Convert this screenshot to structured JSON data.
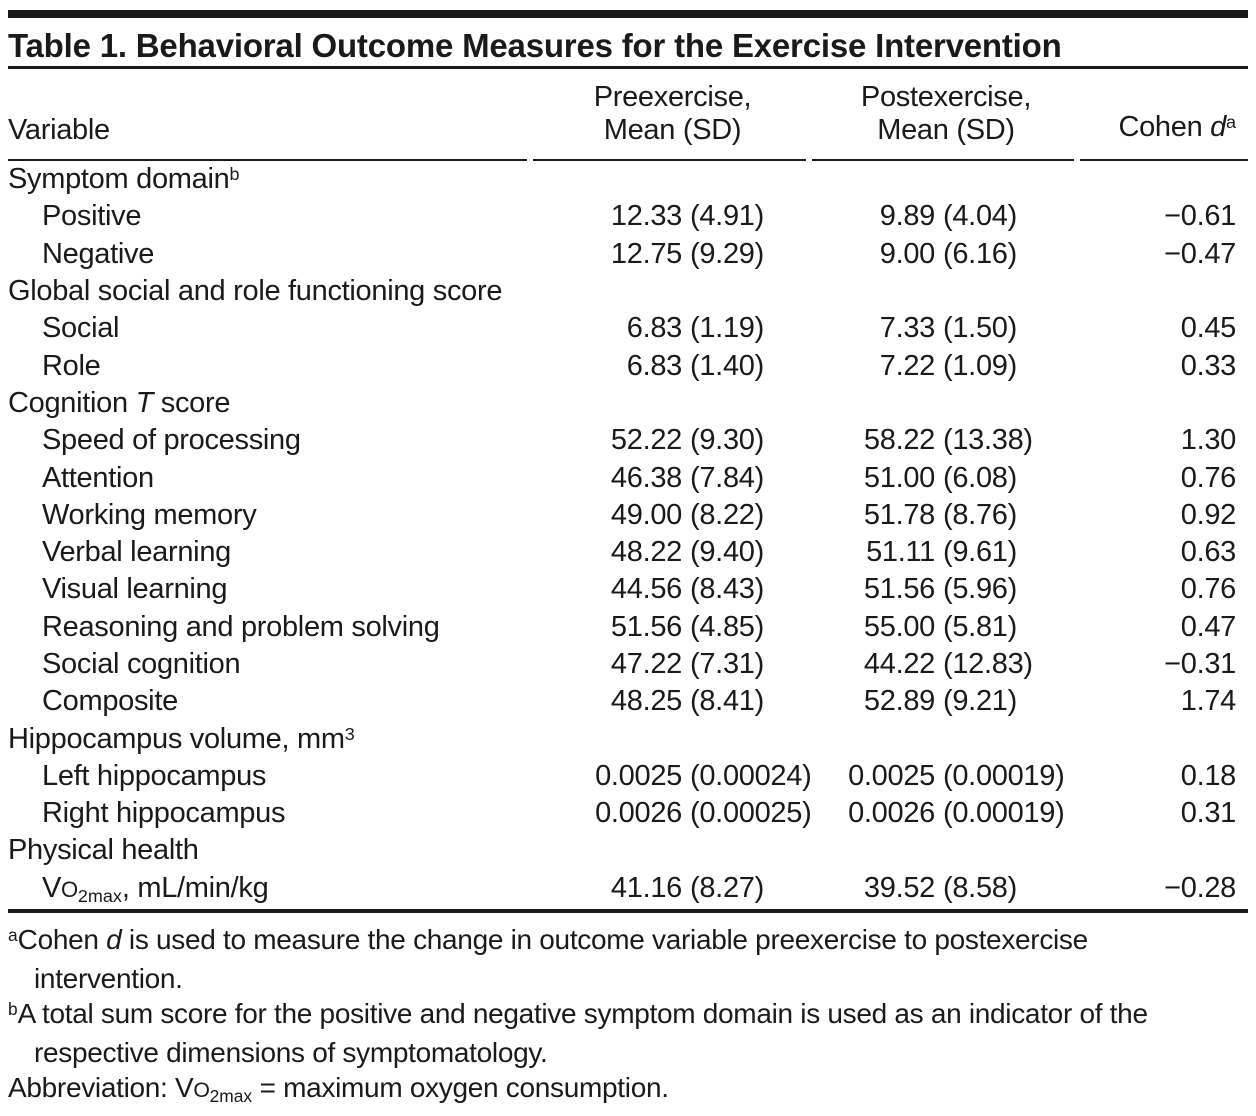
{
  "title": "Table 1. Behavioral Outcome Measures for the Exercise Intervention",
  "header": {
    "variable": "Variable",
    "pre_line1": "Preexercise,",
    "pre_line2": "Mean (SD)",
    "post_line1": "Postexercise,",
    "post_line2": "Mean (SD)",
    "cohen": [
      {
        "t": "Cohen "
      },
      {
        "t": "d",
        "fmt": "i"
      },
      {
        "t": "a",
        "fmt": "sup"
      }
    ]
  },
  "rows": [
    {
      "type": "section",
      "label": [
        {
          "t": "Symptom domain"
        },
        {
          "t": "b",
          "fmt": "sup"
        }
      ]
    },
    {
      "type": "data",
      "label": [
        {
          "t": "Positive"
        }
      ],
      "pre_mean": "12.33",
      "pre_sd": "(4.91)",
      "post_mean": "9.89",
      "post_sd": "(4.04)",
      "d": "−0.61"
    },
    {
      "type": "data",
      "label": [
        {
          "t": "Negative"
        }
      ],
      "pre_mean": "12.75",
      "pre_sd": "(9.29)",
      "post_mean": "9.00",
      "post_sd": "(6.16)",
      "d": "−0.47"
    },
    {
      "type": "section",
      "label": [
        {
          "t": "Global social and role functioning score"
        }
      ]
    },
    {
      "type": "data",
      "label": [
        {
          "t": "Social"
        }
      ],
      "pre_mean": "6.83",
      "pre_sd": "(1.19)",
      "post_mean": "7.33",
      "post_sd": "(1.50)",
      "d": "0.45"
    },
    {
      "type": "data",
      "label": [
        {
          "t": "Role"
        }
      ],
      "pre_mean": "6.83",
      "pre_sd": "(1.40)",
      "post_mean": "7.22",
      "post_sd": "(1.09)",
      "d": "0.33"
    },
    {
      "type": "section",
      "label": [
        {
          "t": "Cognition "
        },
        {
          "t": "T",
          "fmt": "i"
        },
        {
          "t": " score"
        }
      ]
    },
    {
      "type": "data",
      "label": [
        {
          "t": "Speed of processing"
        }
      ],
      "pre_mean": "52.22",
      "pre_sd": "(9.30)",
      "post_mean": "58.22",
      "post_sd": "(13.38)",
      "d": "1.30"
    },
    {
      "type": "data",
      "label": [
        {
          "t": "Attention"
        }
      ],
      "pre_mean": "46.38",
      "pre_sd": "(7.84)",
      "post_mean": "51.00",
      "post_sd": "(6.08)",
      "d": "0.76"
    },
    {
      "type": "data",
      "label": [
        {
          "t": "Working memory"
        }
      ],
      "pre_mean": "49.00",
      "pre_sd": "(8.22)",
      "post_mean": "51.78",
      "post_sd": "(8.76)",
      "d": "0.92"
    },
    {
      "type": "data",
      "label": [
        {
          "t": "Verbal learning"
        }
      ],
      "pre_mean": "48.22",
      "pre_sd": "(9.40)",
      "post_mean": "51.11",
      "post_sd": "(9.61)",
      "d": "0.63"
    },
    {
      "type": "data",
      "label": [
        {
          "t": "Visual learning"
        }
      ],
      "pre_mean": "44.56",
      "pre_sd": "(8.43)",
      "post_mean": "51.56",
      "post_sd": "(5.96)",
      "d": "0.76"
    },
    {
      "type": "data",
      "label": [
        {
          "t": "Reasoning and problem solving"
        }
      ],
      "pre_mean": "51.56",
      "pre_sd": "(4.85)",
      "post_mean": "55.00",
      "post_sd": "(5.81)",
      "d": "0.47"
    },
    {
      "type": "data",
      "label": [
        {
          "t": "Social cognition"
        }
      ],
      "pre_mean": "47.22",
      "pre_sd": "(7.31)",
      "post_mean": "44.22",
      "post_sd": "(12.83)",
      "d": "−0.31"
    },
    {
      "type": "data",
      "label": [
        {
          "t": "Composite"
        }
      ],
      "pre_mean": "48.25",
      "pre_sd": "(8.41)",
      "post_mean": "52.89",
      "post_sd": "(9.21)",
      "d": "1.74"
    },
    {
      "type": "section",
      "label": [
        {
          "t": "Hippocampus volume, mm"
        },
        {
          "t": "3",
          "fmt": "sup"
        }
      ]
    },
    {
      "type": "data",
      "label": [
        {
          "t": "Left hippocampus"
        }
      ],
      "pre_mean": "0.0025",
      "pre_sd": "(0.00024)",
      "post_mean": "0.0025",
      "post_sd": "(0.00019)",
      "d": "0.18"
    },
    {
      "type": "data",
      "label": [
        {
          "t": "Right hippocampus"
        }
      ],
      "pre_mean": "0.0026",
      "pre_sd": "(0.00025)",
      "post_mean": "0.0026",
      "post_sd": "(0.00019)",
      "d": "0.31"
    },
    {
      "type": "section",
      "label": [
        {
          "t": "Physical health"
        }
      ]
    },
    {
      "type": "data",
      "label": [
        {
          "t": "V"
        },
        {
          "t": "O",
          "fmt": "smallcap"
        },
        {
          "t": "2max",
          "fmt": "sub"
        },
        {
          "t": ", mL/min/kg"
        }
      ],
      "pre_mean": "41.16",
      "pre_sd": "(8.27)",
      "post_mean": "39.52",
      "post_sd": "(8.58)",
      "d": "−0.28"
    }
  ],
  "footnotes": [
    {
      "marker": "a",
      "segments": [
        {
          "t": "Cohen "
        },
        {
          "t": "d",
          "fmt": "i"
        },
        {
          "t": " is used to measure the change in outcome variable preexercise to postexercise intervention."
        }
      ]
    },
    {
      "marker": "b",
      "segments": [
        {
          "t": "A total sum score for the positive and negative symptom domain is used as an indicator of the respective dimensions of symptomatology."
        }
      ]
    },
    {
      "marker": "",
      "segments": [
        {
          "t": "Abbreviation: V"
        },
        {
          "t": "O",
          "fmt": "smallcap"
        },
        {
          "t": "2max",
          "fmt": "sub"
        },
        {
          "t": " = maximum oxygen consumption."
        }
      ]
    }
  ],
  "colors": {
    "text": "#1a1a1a",
    "rule": "#1a1a1a",
    "background": "#ffffff"
  }
}
